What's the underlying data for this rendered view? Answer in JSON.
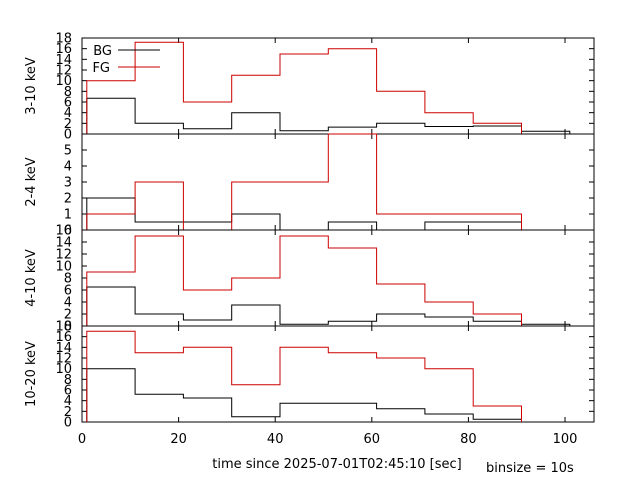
{
  "chart_data": {
    "type": "line",
    "subtype": "step-histogram-stacked-panels",
    "xlabel": "time since 2025-07-01T02:45:10 [sec]",
    "xlim": [
      0,
      106
    ],
    "x_ticks": [
      0,
      20,
      40,
      60,
      80,
      100
    ],
    "annotation": "binsize = 10s",
    "legend": {
      "placement": "top-left",
      "entries": [
        {
          "name": "BG",
          "color": "#000000"
        },
        {
          "name": "FG",
          "color": "#cc0000"
        }
      ]
    },
    "bin_edges": [
      1,
      11,
      21,
      31,
      41,
      51,
      61,
      71,
      81,
      91,
      101
    ],
    "panels": [
      {
        "ylabel": "3-10 keV",
        "ylim": [
          0,
          18
        ],
        "y_ticks": [
          0,
          2,
          4,
          6,
          8,
          10,
          12,
          14,
          16,
          18
        ],
        "series": [
          {
            "name": "BG",
            "color": "#000000",
            "values": [
              6.7,
              2.0,
              1.0,
              4.0,
              0.6,
              1.3,
              2.0,
              1.4,
              1.5,
              0.5
            ]
          },
          {
            "name": "FG",
            "color": "#cc0000",
            "values": [
              10,
              17.2,
              6,
              11,
              15,
              16,
              8,
              4,
              2,
              null
            ]
          }
        ]
      },
      {
        "ylabel": "2-4 keV",
        "ylim": [
          0,
          6
        ],
        "y_ticks": [
          0,
          1,
          2,
          3,
          4,
          5
        ],
        "series": [
          {
            "name": "BG",
            "color": "#000000",
            "values": [
              2.0,
              0.5,
              0.5,
              1.0,
              0,
              0.5,
              0,
              0.5,
              0.5,
              null
            ]
          },
          {
            "name": "FG",
            "color": "#cc0000",
            "values": [
              1,
              3,
              0,
              3,
              3,
              6,
              1,
              1,
              1,
              null
            ]
          }
        ]
      },
      {
        "ylabel": "4-10 keV",
        "ylim": [
          0,
          16
        ],
        "y_ticks": [
          0,
          2,
          4,
          6,
          8,
          10,
          12,
          14,
          16
        ],
        "series": [
          {
            "name": "BG",
            "color": "#000000",
            "values": [
              6.5,
              2.0,
              1.0,
              3.5,
              0.3,
              0.8,
              2.0,
              1.5,
              0.8,
              0.3
            ]
          },
          {
            "name": "FG",
            "color": "#cc0000",
            "values": [
              9,
              15,
              6,
              8,
              15,
              13,
              7,
              4,
              2,
              null
            ]
          }
        ]
      },
      {
        "ylabel": "10-20 keV",
        "ylim": [
          0,
          18
        ],
        "y_ticks": [
          0,
          2,
          4,
          6,
          8,
          10,
          12,
          14,
          16,
          18
        ],
        "series": [
          {
            "name": "BG",
            "color": "#000000",
            "values": [
              10,
              5.2,
              4.5,
              1.0,
              3.5,
              3.5,
              2.5,
              1.5,
              0.5,
              null
            ]
          },
          {
            "name": "FG",
            "color": "#cc0000",
            "values": [
              17,
              13,
              14,
              7,
              14,
              13,
              12,
              10,
              3,
              null
            ]
          }
        ]
      }
    ]
  }
}
